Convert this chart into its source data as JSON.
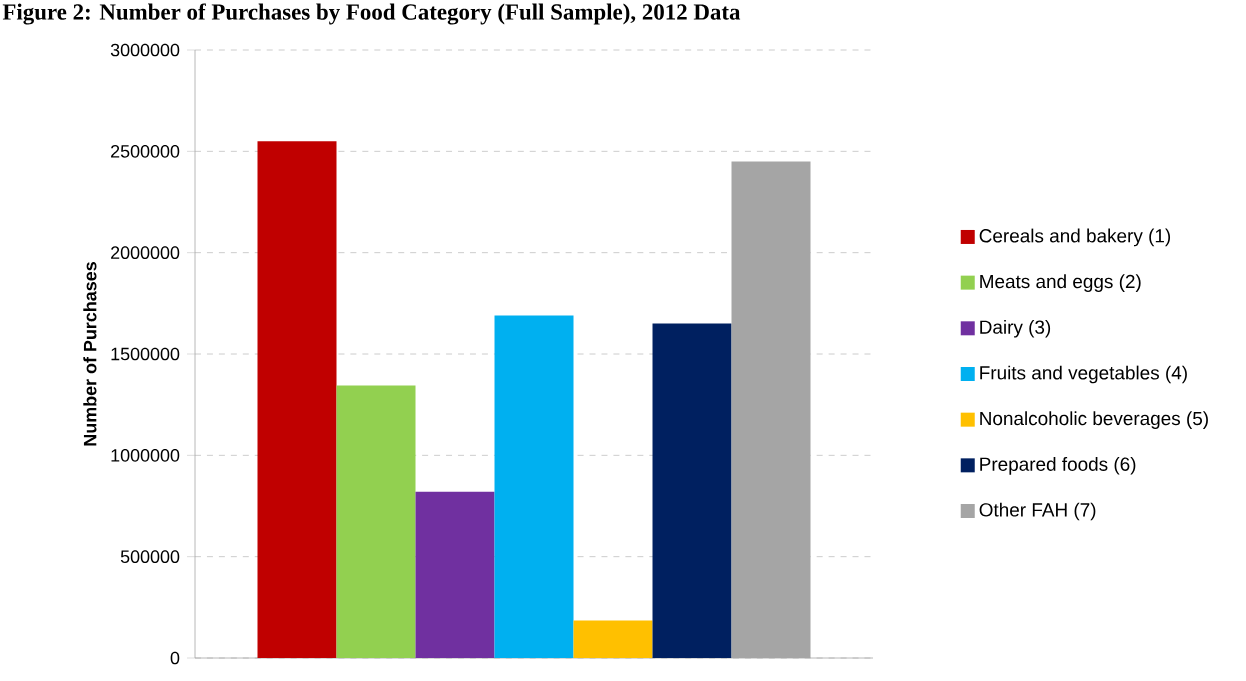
{
  "chart_data": {
    "type": "bar",
    "title": "Figure 2: Number of Purchases by Food Category (Full Sample), 2012 Data",
    "ylabel": "Number of Purchases",
    "categories": [
      null
    ],
    "series": [
      {
        "name": "Cereals and bakery (1)",
        "color": "#c00000",
        "values": [
          2550000
        ]
      },
      {
        "name": "Meats and eggs (2)",
        "color": "#92d050",
        "values": [
          1345000
        ]
      },
      {
        "name": "Dairy (3)",
        "color": "#7030a0",
        "values": [
          820000
        ]
      },
      {
        "name": "Fruits and vegetables (4)",
        "color": "#00b0f0",
        "values": [
          1690000
        ]
      },
      {
        "name": "Nonalcoholic beverages (5)",
        "color": "#ffc000",
        "values": [
          185000
        ]
      },
      {
        "name": "Prepared foods (6)",
        "color": "#002060",
        "values": [
          1650000
        ]
      },
      {
        "name": "Other FAH (7)",
        "color": "#a5a5a5",
        "values": [
          2450000
        ]
      }
    ],
    "ylim": [
      0,
      3000000
    ],
    "yticks": [
      0,
      500000,
      1000000,
      1500000,
      2000000,
      2500000,
      3000000
    ],
    "grid": "y",
    "legend": "right"
  }
}
